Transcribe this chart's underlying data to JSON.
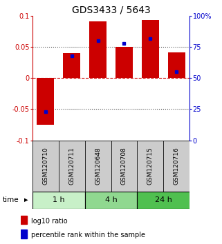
{
  "title": "GDS3433 / 5643",
  "samples": [
    "GSM120710",
    "GSM120711",
    "GSM120648",
    "GSM120708",
    "GSM120715",
    "GSM120716"
  ],
  "log10_ratio": [
    -0.075,
    0.04,
    0.091,
    0.05,
    0.093,
    0.041
  ],
  "percentile_rank": [
    23,
    68,
    80,
    78,
    82,
    55
  ],
  "groups": [
    {
      "label": "1 h",
      "indices": [
        0,
        1
      ],
      "color": "#c8f0c8"
    },
    {
      "label": "4 h",
      "indices": [
        2,
        3
      ],
      "color": "#90d890"
    },
    {
      "label": "24 h",
      "indices": [
        4,
        5
      ],
      "color": "#50c050"
    }
  ],
  "ylim": [
    -0.1,
    0.1
  ],
  "yticks": [
    -0.1,
    -0.05,
    0,
    0.05,
    0.1
  ],
  "ytick_labels_left": [
    "-0.1",
    "-0.05",
    "0",
    "0.05",
    "0.1"
  ],
  "ytick_labels_right": [
    "0",
    "25",
    "50",
    "75",
    "100%"
  ],
  "bar_color": "#cc0000",
  "dot_color": "#0000cc",
  "hline_color_zero": "#cc0000",
  "hline_color_dotted": "#555555",
  "bar_width": 0.65,
  "background_color": "#ffffff",
  "plot_bg": "#ffffff",
  "legend_red": "log10 ratio",
  "legend_blue": "percentile rank within the sample",
  "time_label": "time",
  "sample_box_color": "#cccccc",
  "title_fontsize": 10,
  "tick_fontsize": 7,
  "sample_fontsize": 6.5,
  "group_fontsize": 8,
  "legend_fontsize": 7
}
